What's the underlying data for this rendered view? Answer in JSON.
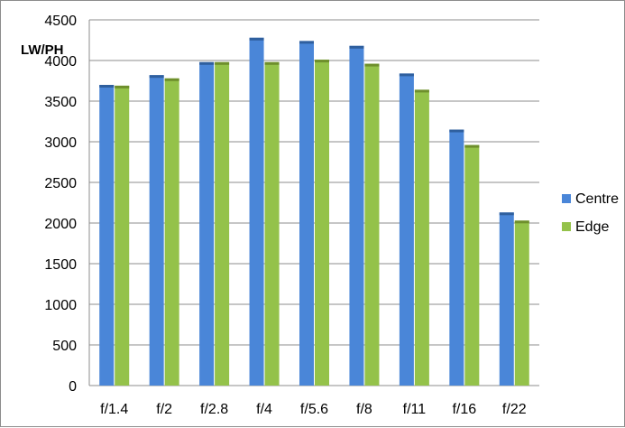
{
  "chart_data": {
    "type": "bar",
    "title": "",
    "xlabel": "",
    "ylabel": "LW/PH",
    "ylim": [
      0,
      4500
    ],
    "yticks": [
      0,
      500,
      1000,
      1500,
      2000,
      2500,
      3000,
      3500,
      4000,
      4500
    ],
    "grid": true,
    "legend_position": "right",
    "categories": [
      "f/1.4",
      "f/2",
      "f/2.8",
      "f/4",
      "f/5.6",
      "f/8",
      "f/11",
      "f/16",
      "f/22"
    ],
    "series": [
      {
        "name": "Centre",
        "color": "#4a86d8",
        "values": [
          3700,
          3820,
          3980,
          4280,
          4240,
          4180,
          3840,
          3150,
          2130
        ]
      },
      {
        "name": "Edge",
        "color": "#94c24a",
        "values": [
          3690,
          3780,
          3980,
          3980,
          4010,
          3960,
          3640,
          2960,
          2030
        ]
      }
    ]
  }
}
